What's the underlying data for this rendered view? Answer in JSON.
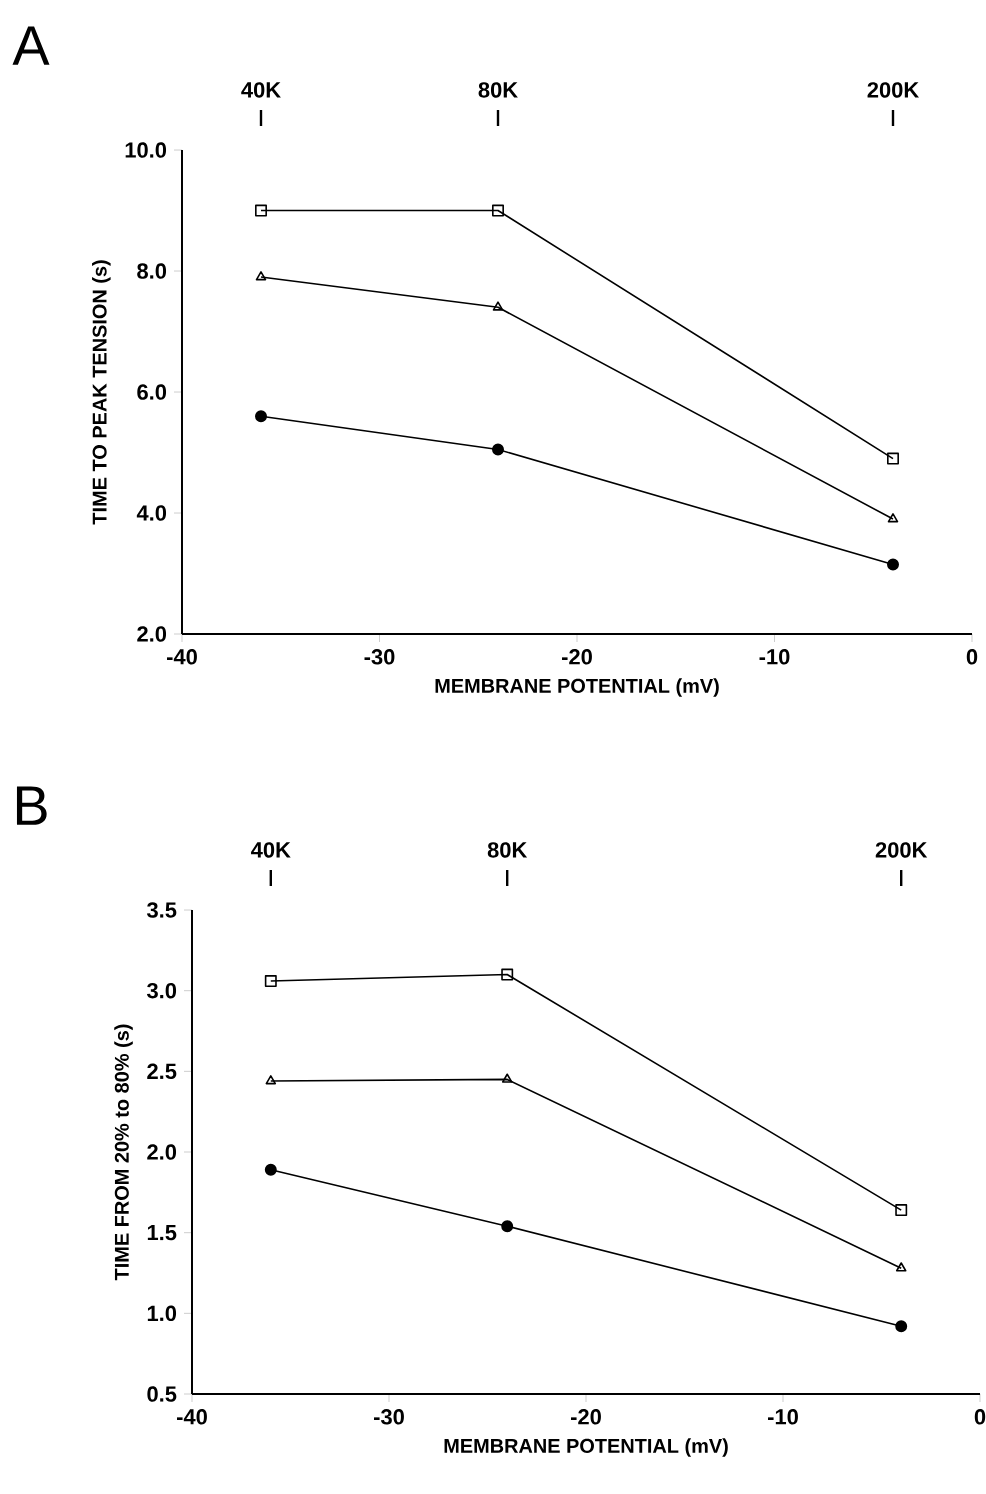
{
  "chart_data": [
    {
      "type": "line",
      "title": "A",
      "xlabel": "MEMBRANE POTENTIAL (mV)",
      "ylabel": "TIME TO PEAK TENSION (s)",
      "x": [
        -36,
        -24,
        -4
      ],
      "series": [
        {
          "color": "#000000",
          "marker": "square",
          "values": [
            9.0,
            9.0,
            4.9
          ]
        },
        {
          "color": "#000000",
          "marker": "triangle",
          "values": [
            7.9,
            7.4,
            3.9
          ]
        },
        {
          "color": "#000000",
          "marker": "circle",
          "values": [
            5.6,
            5.05,
            3.15
          ]
        }
      ],
      "xlim": [
        -40,
        0
      ],
      "xticks": [
        -40,
        -30,
        -20,
        -10,
        0
      ],
      "ylim": [
        2.0,
        10.0
      ],
      "yticks": [
        {
          "value": 2,
          "label": "2.0"
        },
        {
          "value": 4,
          "label": "4.0"
        },
        {
          "value": 6,
          "label": "6.0"
        },
        {
          "value": 8,
          "label": "8.0"
        },
        {
          "value": 10,
          "label": "10.0"
        }
      ],
      "annotations": [
        "40K",
        "80K",
        "200K"
      ],
      "line_style": "solid",
      "grid": false
    },
    {
      "type": "line",
      "title": "B",
      "xlabel": "MEMBRANE POTENTIAL (mV)",
      "ylabel": "TIME FROM 20% to 80% (s)",
      "x": [
        -36,
        -24,
        -4
      ],
      "series": [
        {
          "color": "#000000",
          "marker": "square",
          "values": [
            3.06,
            3.1,
            1.64
          ]
        },
        {
          "color": "#000000",
          "marker": "triangle",
          "values": [
            2.44,
            2.45,
            1.28
          ]
        },
        {
          "color": "#000000",
          "marker": "circle",
          "values": [
            1.89,
            1.54,
            0.92
          ]
        }
      ],
      "xlim": [
        -40,
        0
      ],
      "xticks": [
        -40,
        -30,
        -20,
        -10,
        0
      ],
      "ylim": [
        0.5,
        3.5
      ],
      "yticks": [
        {
          "value": 0.5,
          "label": "0.5"
        },
        {
          "value": 1,
          "label": "1.0"
        },
        {
          "value": 1.5,
          "label": "1.5"
        },
        {
          "value": 2,
          "label": "2.0"
        },
        {
          "value": 2.5,
          "label": "2.5"
        },
        {
          "value": 3,
          "label": "3.0"
        },
        {
          "value": 3.5,
          "label": "3.5"
        }
      ],
      "annotations": [
        "40K",
        "80K",
        "200K"
      ],
      "line_style": "solid",
      "grid": false
    }
  ]
}
